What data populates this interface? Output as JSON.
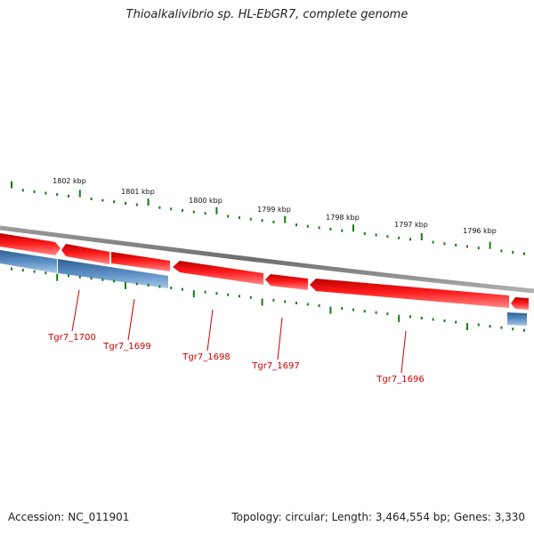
{
  "title": "Thioalkalivibrio sp. HL-EbGR7, complete genome",
  "footer": {
    "accession": "Accession: NC_011901",
    "summary": "Topology: circular; Length: 3,464,554 bp; Genes: 3,330"
  },
  "colors": {
    "forward_gene": "#ee1111",
    "reverse_gene": "#4a7fb5",
    "backbone": "#808080",
    "ticks": "#1a7a1a",
    "labels": "#cc0000"
  },
  "scale_labels": [
    "1802 kbp",
    "1801 kbp",
    "1800 kbp",
    "1799 kbp",
    "1798 kbp",
    "1797 kbp",
    "1796 kbp"
  ],
  "gene_labels": [
    "Tgr7_1700",
    "Tgr7_1699",
    "Tgr7_1698",
    "Tgr7_1697",
    "Tgr7_1696"
  ]
}
